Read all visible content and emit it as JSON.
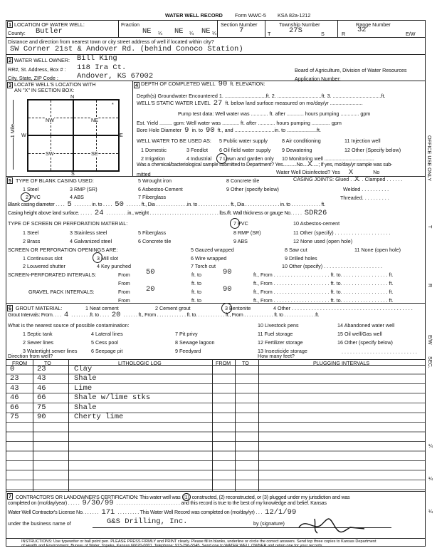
{
  "header": {
    "title": "WATER WELL RECORD",
    "form": "Form WWC-5",
    "statute": "KSA 82a-1212"
  },
  "s1": {
    "num": "1",
    "label": "LOCATION OF WATER WELL:",
    "county_label": "County:",
    "county": "Butler",
    "fraction_label": "Fraction",
    "fractions": [
      "NE",
      "NE",
      "NE"
    ],
    "quarter": "¼",
    "section_label": "Section Number",
    "section": "7",
    "township_label": "Township Number",
    "t": "T",
    "township": "27S",
    "s": "S",
    "range_label": "Range Number",
    "r": "R",
    "range": "32",
    "ew": "E/W",
    "distance_label": "Distance and direction from nearest town or city street address of well if located within city?",
    "distance": "SW Corner 21st & Andover Rd. (behind Conoco Station)"
  },
  "s2": {
    "num": "2",
    "owner_label": "WATER WELL OWNER:",
    "owner": "Bill King",
    "address_label": "RR#, St. Address, Box # :",
    "address": "118 Ira Ct.",
    "city_label": "City, State, ZIP Code    :",
    "city": "Andover, KS   67002",
    "board": "Board of Agriculture, Division of Water Resources",
    "app_label": "Application Number:"
  },
  "s3": {
    "num": "3",
    "label1": "LOCATE WELL'S LOCATION WITH",
    "label2": "AN \"X\" IN SECTION BOX:",
    "n": "N",
    "s": "S",
    "e": "E",
    "w": "W",
    "mile": "1 Mile",
    "nw": "NW",
    "ne": "NE",
    "sw": "SW",
    "se": "SE",
    "mark": "*"
  },
  "s4": {
    "num": "4",
    "depth_label": "DEPTH OF COMPLETED WELL",
    "depth": "90",
    "ft_elev": "ft.  ELEVATION:",
    "gw_label": "Depth(s) Groundwater Encountered   1. .............................ft. 2. ...............................ft. 3. ..................................ft.",
    "static_label": "WELL'S STATIC WATER LEVEL",
    "static": "27",
    "static_rest": "ft. below land surface measured on mo/day/yr  .......................",
    "pump": "Pump test data:  Well water was  ............ ft. after  ............  hours pumping ............. gpm",
    "yield": "Est. Yield ......... gpm:  Well water was  ............ ft. after  ............  hours pumping ............. gpm",
    "bore_label": "Bore Hole Diameter",
    "bore_in": "9",
    "bore_to": "in. to",
    "bore_ft": "90",
    "bore_rest": "ft., and ............................in. to  .....................ft.",
    "use_label": "WELL WATER TO BE USED AS:",
    "uses": [
      "1 Domestic",
      "2 Irrigation",
      "3 Feedlot",
      "4 Industrial",
      "5 Public water supply",
      "6 Oil field water supply",
      "7 Lawn and garden only",
      "8 Air conditioning",
      "9 Dewatering",
      "10 Monitoring well ...................................",
      "11 Injection well",
      "12 Other (Specify below)"
    ],
    "chem": "Was a chemical/bacteriological sample submitted to Department? Yes...........No....",
    "chem_no": "X",
    "chem_rest": ".....; If yes, mo/day/yr sample was sub-",
    "mitted": "mitted",
    "disinfected_label": "Water Well Disinfected?  Yes",
    "disinfected": "X",
    "no": "No"
  },
  "s5": {
    "num": "5",
    "label": "TYPE OF BLANK CASING USED:",
    "casing": [
      "1 Steel",
      "2 PVC",
      "3 RMP (SR)",
      "4 ABS",
      "5 Wrought iron",
      "6 Asbestos-Cement",
      "7 Fiberglass",
      "8 Concrete tile",
      "9 Other (specify below)"
    ],
    "joints": "CASING JOINTS: Glued . .",
    "glued": "X",
    "clamped": ". . Clamped . . . . . .",
    "welded": "Welded . . . . . . . . . .",
    "threaded": "Threaded. . . . . . . . . .",
    "diam_label": "Blank casing diameter . . . .",
    "diam": "5",
    "diam_to": ". . . . . . . in. to . . . .",
    "diam_ft": "50",
    "diam_rest": ". . . . . . ft., Dia . . . . . . . . . . . . .in. to . . . . . . . . . . . . . ft., Dia . . . . . . . . . . . . . . in. to  . . . . . . . . . . . . ft.",
    "height_label": "Casing height above land surface. . . . . .",
    "height": "24",
    "height_rest": ". . . . . . . . .in., weight . . . . . . . . . . . . . . . . . . . . . . . . . . . . lbs./ft. Wall thickness or gauge No.  . . . .",
    "gauge": "SDR26",
    "screen_label": "TYPE OF SCREEN OR PERFORATION MATERIAL:",
    "screens": [
      "1 Steel",
      "2 Brass",
      "3 Stainless steel",
      "4 Galvanized steel",
      "5 Fiberglass",
      "6 Concrete tile",
      "7 PVC",
      "8 RMP (SR)",
      "9 ABS",
      "10 Asbestos-cement",
      "11 Other (specify) . . . . . . . . . . . . . . . . . . . .",
      "12 None used (open hole)"
    ],
    "open_label": "SCREEN OR PERFORATION OPENINGS ARE:",
    "openings": [
      "1 Continuous slot",
      "2 Louvered shutter",
      "3 Mill slot",
      "4 Key punched",
      "5 Gauzed wrapped",
      "6 Wire wrapped",
      "7 Torch cut",
      "8 Saw cut",
      "9 Drilled holes",
      "10 Other (specify) . . . . . . . . . . . . . . . . . . . . .",
      "11 None (open hole)"
    ],
    "sp_label": "SCREEN-PERFORATED INTERVALS:",
    "gp_label": "GRAVEL PACK INTERVALS:",
    "from": "From",
    "to": "ft. to",
    "ft_from": "ft., From . . . . . . . . . . . . . . . . . . . . ft. to. . . . . . . . . . . . . . . . . ft.",
    "sp_from": "50",
    "sp_to": "90",
    "gp_from": "20",
    "gp_to": "90",
    "dots": ". . . . . . . . . . . . . . . . . ."
  },
  "s6": {
    "num": "6",
    "label": "GROUT MATERIAL:",
    "grouts": [
      "1 Neat cement",
      "2 Cement grout",
      "3 Bentonite",
      "4 Other . . . . . . . . . . . . . . . . . . . . . . . . . . . . . . . . . . . . . . . . . . ."
    ],
    "int_label": "Grout Intervals:   From. . . .",
    "int_from": "4",
    "int_mid": ". . . . . . . .ft. to . . . .",
    "int_to": "20",
    "int_rest": ". . . . . .  ft.,  From . . . . . . . . . . . . ft.  to. . . . . . . . . . . .  ft.,  From . . . . . . . . . . . . ft. to . . . . . . . . . . . . .ft.",
    "contam_label": "What is the nearest source of possible contamination:",
    "sources": [
      "1 Septic tank",
      "2 Sewer lines",
      "3 Watertight sewer lines",
      "4 Lateral lines",
      "5 Cess pool",
      "6 Seepage pit",
      "7 Pit privy",
      "8 Sewage lagoon",
      "9 Feedyard",
      "10 Livestock pens",
      "11 Fuel storage",
      "12 Fertilizer storage",
      "13 Insecticide storage",
      "14 Abandoned water well",
      "15 Oil well/Gas well",
      "16 Other (specify below)"
    ],
    "other_dots": ". . . . . . . . . . . . . . . . . . . . . . . . . . .",
    "direction": "Direction from well?",
    "howmany": "How many feet?"
  },
  "log": {
    "headers": [
      "FROM",
      "TO",
      "LITHOLOGIC LOG",
      "FROM",
      "TO",
      "PLUGGING INTERVALS"
    ],
    "rows": [
      [
        "0",
        "23",
        "Clay"
      ],
      [
        "23",
        "43",
        "Shale"
      ],
      [
        "43",
        "46",
        "Lime"
      ],
      [
        "46",
        "66",
        "Shale w/lime stks"
      ],
      [
        "66",
        "75",
        "Shale"
      ],
      [
        "75",
        "90",
        "Cherty lime"
      ]
    ]
  },
  "s7": {
    "num": "7",
    "line1a": "CONTRACTOR'S OR LANDOWNER'S CERTIFICATION: This water well was",
    "opt1": "(1)",
    "line1b": "constructed, (2) reconstructed, or (3) plugged under my jurisdiction and was",
    "completed_label": "completed on (mo/day/year) . . . . .",
    "completed": "9/30/99",
    "completed_rest": ". . . . . . . . . . . . . . . . . . . . . . . . . .    and this record is true to the best of my knowledge and belief. Kansas",
    "license_label": "Water Well Contractor's License No.  . . . . . .",
    "license": "171",
    "license_mid": ". . . . . . . . .   This Water Well Record was completed on (mo/day/yr) . . .",
    "record_date": "12/1/99",
    "business_label": "under the business name of",
    "business": "G&S Drilling, Inc.",
    "signature_label": "by (signature)",
    "instructions1": "INSTRUCTIONS: Use typewriter or ball point pen. PLEASE PRESS FIRMLY and PRINT clearly. Please fill in blanks, underline or circle the correct answers. Send top three copies to Kansas Department",
    "instructions2": "of Health and Environment, Bureau of Water, Topeka, Kansas 66620-0001. Telephone: 913-296-5545. Send one to WATER WELL OWNER and retain one for your records."
  },
  "margin": {
    "office": "OFFICE USE ONLY",
    "t": "T",
    "r": "R",
    "ew": "E/W",
    "sec": "SEC.",
    "q1": "¼",
    "q2": "¼",
    "q3": "¼"
  }
}
